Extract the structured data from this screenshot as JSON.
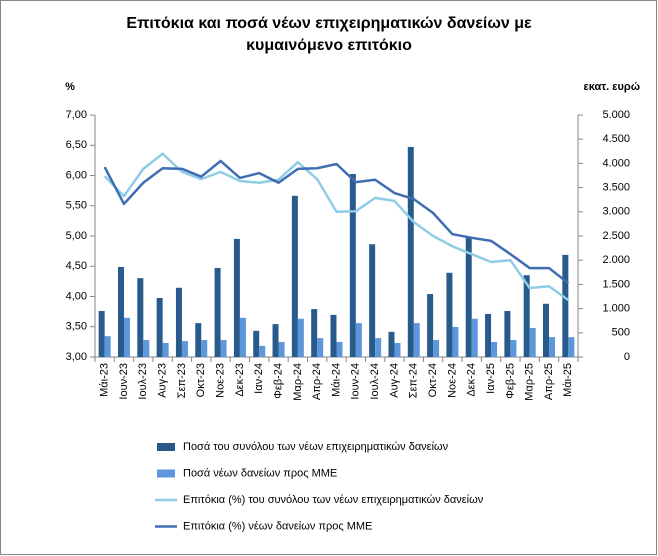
{
  "chart_data": {
    "type": "combo",
    "title": [
      "Επιτόκια και ποσά νέων επιχειρηματικών δανείων με",
      "κυμαινόμενο επιτόκιο"
    ],
    "y_label": "%",
    "y2_label": "εκατ. ευρώ",
    "categories": [
      "Μάι-23",
      "Ιουν-23",
      "Ιουλ-23",
      "Αυγ-23",
      "Σεπ-23",
      "Οκτ-23",
      "Νοε-23",
      "Δεκ-23",
      "Ιαν-24",
      "Φεβ-24",
      "Μαρ-24",
      "Απρ-24",
      "Μάι-24",
      "Ιουν-24",
      "Ιουλ-24",
      "Αυγ-24",
      "Σεπ-24",
      "Οκτ-24",
      "Νοε-24",
      "Δεκ-24",
      "Ιαν-25",
      "Φεβ-25",
      "Μαρ-25",
      "Απρ-25",
      "Μάι-25"
    ],
    "series": [
      {
        "name": "Ποσά του συνόλου των νέων επιχειρηματικών δανείων",
        "type": "bar",
        "axis": "y2",
        "color": "#285a8c",
        "values": [
          950,
          1860,
          1630,
          1220,
          1430,
          700,
          1840,
          2440,
          540,
          680,
          3330,
          990,
          870,
          3780,
          2330,
          520,
          4340,
          1300,
          1740,
          2460,
          890,
          950,
          1690,
          1100,
          2110
        ]
      },
      {
        "name": "Ποσά νέων δανείων προς ΜΜΕ",
        "type": "bar",
        "axis": "y2",
        "color": "#5e96dc",
        "values": [
          430,
          810,
          350,
          290,
          330,
          350,
          350,
          810,
          230,
          310,
          790,
          390,
          310,
          700,
          390,
          290,
          700,
          350,
          620,
          790,
          310,
          350,
          600,
          410,
          410
        ]
      },
      {
        "name": "Επιτόκια (%) του συνόλου των νέων επιχειρηματικών δανείων",
        "type": "line",
        "color": "#8fcde6",
        "values": [
          5.99,
          5.66,
          6.11,
          6.36,
          6.06,
          5.94,
          6.06,
          5.91,
          5.88,
          5.93,
          6.22,
          5.94,
          5.4,
          5.41,
          5.63,
          5.58,
          5.23,
          5.0,
          4.83,
          4.7,
          4.57,
          4.6,
          4.14,
          4.17,
          3.94
        ]
      },
      {
        "name": "Επιτόκια (%) νέων δανείων προς ΜΜΕ",
        "type": "line",
        "color": "#3f6db4",
        "values": [
          6.14,
          5.53,
          5.88,
          6.12,
          6.11,
          5.98,
          6.24,
          5.96,
          6.04,
          5.88,
          6.11,
          6.12,
          6.19,
          5.89,
          5.93,
          5.71,
          5.61,
          5.38,
          5.03,
          4.97,
          4.92,
          4.7,
          4.47,
          4.47,
          4.22
        ]
      }
    ],
    "ylim": [
      3,
      7
    ],
    "yticks": [
      {
        "value": 3,
        "label": "3,00"
      },
      {
        "value": 3.5,
        "label": "3,50"
      },
      {
        "value": 4,
        "label": "4,00"
      },
      {
        "value": 4.5,
        "label": "4,50"
      },
      {
        "value": 5,
        "label": "5,00"
      },
      {
        "value": 5.5,
        "label": "5,50"
      },
      {
        "value": 6,
        "label": "6,00"
      },
      {
        "value": 6.5,
        "label": "6,50"
      },
      {
        "value": 7,
        "label": "7,00"
      }
    ],
    "y2lim": [
      0,
      5000
    ],
    "y2ticks": [
      0,
      500,
      {
        "value": 1000,
        "label": "1.000"
      },
      {
        "value": 1500,
        "label": "1.500"
      },
      {
        "value": 2000,
        "label": "2.000"
      },
      {
        "value": 2500,
        "label": "2.500"
      },
      {
        "value": 3000,
        "label": "3.000"
      },
      {
        "value": 3500,
        "label": "3.500"
      },
      {
        "value": 4000,
        "label": "4.000"
      },
      {
        "value": 4500,
        "label": "4.500"
      },
      {
        "value": 5000,
        "label": "5.000"
      }
    ],
    "grid": false,
    "legend": "bottom"
  }
}
